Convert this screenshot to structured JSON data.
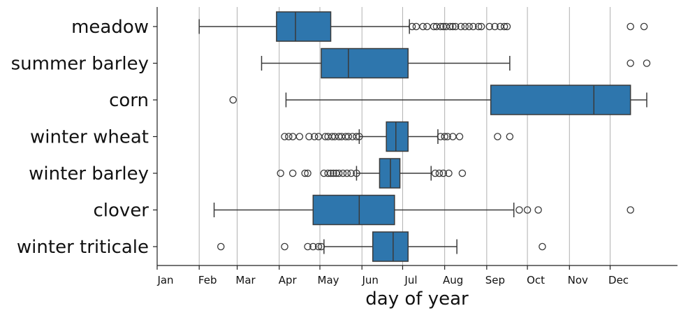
{
  "chart_data": {
    "type": "boxplot",
    "orientation": "horizontal",
    "xlabel": "day of year",
    "ylabel": "",
    "xlim": [
      1,
      366
    ],
    "grid": "vertical",
    "color": "#2e76ad",
    "month_ticks": [
      {
        "label": "Jan",
        "day": 1
      },
      {
        "label": "Feb",
        "day": 32
      },
      {
        "label": "Mar",
        "day": 60
      },
      {
        "label": "Apr",
        "day": 91
      },
      {
        "label": "May",
        "day": 121
      },
      {
        "label": "Jun",
        "day": 152
      },
      {
        "label": "Jul",
        "day": 182
      },
      {
        "label": "Aug",
        "day": 213
      },
      {
        "label": "Sep",
        "day": 244
      },
      {
        "label": "Oct",
        "day": 274
      },
      {
        "label": "Nov",
        "day": 305
      },
      {
        "label": "Dec",
        "day": 335
      }
    ],
    "series": [
      {
        "name": "meadow",
        "whisker_low": 32,
        "q1": 89,
        "median": 103,
        "q3": 129,
        "whisker_high": 187,
        "outliers": [
          189,
          192,
          197,
          200,
          205,
          207,
          210,
          212,
          214,
          217,
          219,
          221,
          225,
          228,
          231,
          234,
          238,
          240,
          246,
          250,
          254,
          257,
          259,
          350,
          360
        ]
      },
      {
        "name": "summer barley",
        "whisker_low": 78,
        "q1": 122,
        "median": 142,
        "q3": 186,
        "whisker_high": 261,
        "outliers": [
          350,
          362
        ]
      },
      {
        "name": "corn",
        "whisker_low": 96,
        "q1": 247,
        "median": 323,
        "q3": 350,
        "whisker_high": 362,
        "outliers": [
          57
        ]
      },
      {
        "name": "winter wheat",
        "whisker_low": 150,
        "q1": 170,
        "median": 177,
        "q3": 186,
        "whisker_high": 208,
        "outliers": [
          95,
          98,
          101,
          106,
          113,
          117,
          120,
          125,
          127,
          130,
          132,
          135,
          137,
          140,
          142,
          145,
          148,
          150,
          210,
          213,
          215,
          219,
          224,
          252,
          261
        ]
      },
      {
        "name": "winter barley",
        "whisker_low": 148,
        "q1": 165,
        "median": 173,
        "q3": 180,
        "whisker_high": 203,
        "outliers": [
          92,
          101,
          110,
          112,
          124,
          127,
          129,
          131,
          133,
          135,
          138,
          141,
          144,
          148,
          206,
          209,
          212,
          216,
          226
        ]
      },
      {
        "name": "clover",
        "whisker_low": 43,
        "q1": 116,
        "median": 150,
        "q3": 176,
        "whisker_high": 264,
        "outliers": [
          268,
          274,
          282,
          350
        ]
      },
      {
        "name": "winter triticale",
        "whisker_low": 124,
        "q1": 160,
        "median": 175,
        "q3": 186,
        "whisker_high": 222,
        "outliers": [
          48,
          95,
          112,
          116,
          120,
          122,
          285
        ]
      }
    ]
  }
}
